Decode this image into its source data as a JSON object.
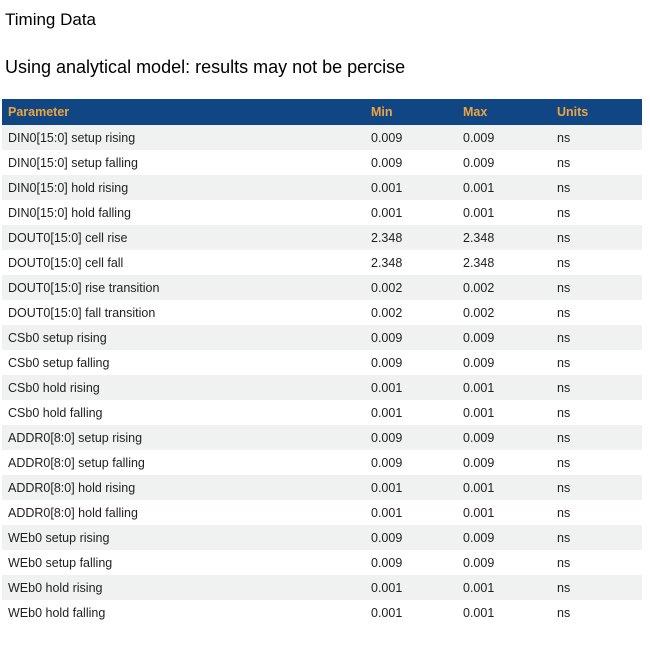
{
  "page": {
    "title": "Timing Data",
    "subtitle": "Using analytical model: results may not be percise"
  },
  "colors": {
    "table_header_bg": "#114684",
    "table_header_text": "#F0A53C",
    "row_alt_bg": "#F0F1F1",
    "row_bg": "#FFFFFF",
    "body_text": "#1F1F1F"
  },
  "table": {
    "columns": [
      "Parameter",
      "Min",
      "Max",
      "Units"
    ],
    "rows": [
      [
        "DIN0[15:0] setup rising",
        "0.009",
        "0.009",
        "ns"
      ],
      [
        "DIN0[15:0] setup falling",
        "0.009",
        "0.009",
        "ns"
      ],
      [
        "DIN0[15:0] hold rising",
        "0.001",
        "0.001",
        "ns"
      ],
      [
        "DIN0[15:0] hold falling",
        "0.001",
        "0.001",
        "ns"
      ],
      [
        "DOUT0[15:0] cell rise",
        "2.348",
        "2.348",
        "ns"
      ],
      [
        "DOUT0[15:0] cell fall",
        "2.348",
        "2.348",
        "ns"
      ],
      [
        "DOUT0[15:0] rise transition",
        "0.002",
        "0.002",
        "ns"
      ],
      [
        "DOUT0[15:0] fall transition",
        "0.002",
        "0.002",
        "ns"
      ],
      [
        "CSb0 setup rising",
        "0.009",
        "0.009",
        "ns"
      ],
      [
        "CSb0 setup falling",
        "0.009",
        "0.009",
        "ns"
      ],
      [
        "CSb0 hold rising",
        "0.001",
        "0.001",
        "ns"
      ],
      [
        "CSb0 hold falling",
        "0.001",
        "0.001",
        "ns"
      ],
      [
        "ADDR0[8:0] setup rising",
        "0.009",
        "0.009",
        "ns"
      ],
      [
        "ADDR0[8:0] setup falling",
        "0.009",
        "0.009",
        "ns"
      ],
      [
        "ADDR0[8:0] hold rising",
        "0.001",
        "0.001",
        "ns"
      ],
      [
        "ADDR0[8:0] hold falling",
        "0.001",
        "0.001",
        "ns"
      ],
      [
        "WEb0 setup rising",
        "0.009",
        "0.009",
        "ns"
      ],
      [
        "WEb0 setup falling",
        "0.009",
        "0.009",
        "ns"
      ],
      [
        "WEb0 hold rising",
        "0.001",
        "0.001",
        "ns"
      ],
      [
        "WEb0 hold falling",
        "0.001",
        "0.001",
        "ns"
      ]
    ]
  },
  "chart_data": {
    "type": "table",
    "title": "Timing Data",
    "columns": [
      "Parameter",
      "Min",
      "Max",
      "Units"
    ],
    "rows": [
      [
        "DIN0[15:0] setup rising",
        "0.009",
        "0.009",
        "ns"
      ],
      [
        "DIN0[15:0] setup falling",
        "0.009",
        "0.009",
        "ns"
      ],
      [
        "DIN0[15:0] hold rising",
        "0.001",
        "0.001",
        "ns"
      ],
      [
        "DIN0[15:0] hold falling",
        "0.001",
        "0.001",
        "ns"
      ],
      [
        "DOUT0[15:0] cell rise",
        "2.348",
        "2.348",
        "ns"
      ],
      [
        "DOUT0[15:0] cell fall",
        "2.348",
        "2.348",
        "ns"
      ],
      [
        "DOUT0[15:0] rise transition",
        "0.002",
        "0.002",
        "ns"
      ],
      [
        "DOUT0[15:0] fall transition",
        "0.002",
        "0.002",
        "ns"
      ],
      [
        "CSb0 setup rising",
        "0.009",
        "0.009",
        "ns"
      ],
      [
        "CSb0 setup falling",
        "0.009",
        "0.009",
        "ns"
      ],
      [
        "CSb0 hold rising",
        "0.001",
        "0.001",
        "ns"
      ],
      [
        "CSb0 hold falling",
        "0.001",
        "0.001",
        "ns"
      ],
      [
        "ADDR0[8:0] setup rising",
        "0.009",
        "0.009",
        "ns"
      ],
      [
        "ADDR0[8:0] setup falling",
        "0.009",
        "0.009",
        "ns"
      ],
      [
        "ADDR0[8:0] hold rising",
        "0.001",
        "0.001",
        "ns"
      ],
      [
        "ADDR0[8:0] hold falling",
        "0.001",
        "0.001",
        "ns"
      ],
      [
        "WEb0 setup rising",
        "0.009",
        "0.009",
        "ns"
      ],
      [
        "WEb0 setup falling",
        "0.009",
        "0.009",
        "ns"
      ],
      [
        "WEb0 hold rising",
        "0.001",
        "0.001",
        "ns"
      ],
      [
        "WEb0 hold falling",
        "0.001",
        "0.001",
        "ns"
      ]
    ]
  }
}
